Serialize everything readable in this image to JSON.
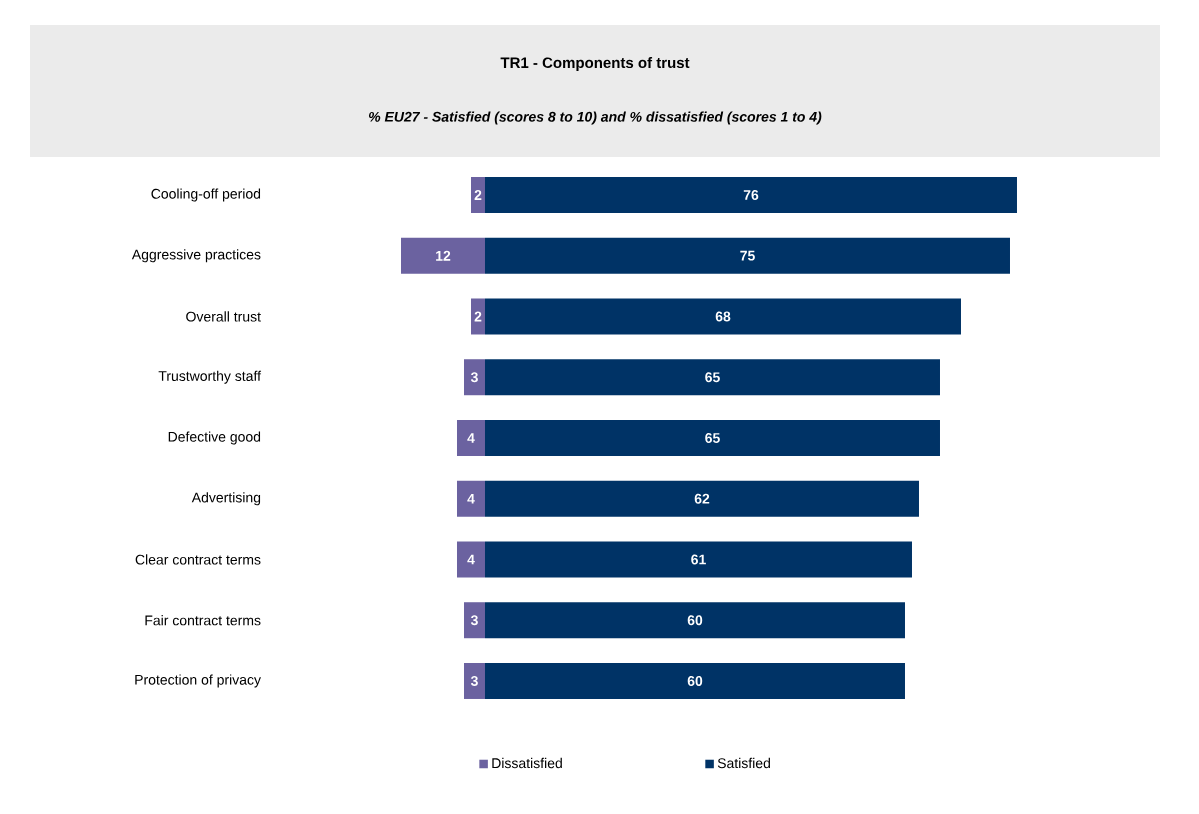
{
  "chart_data": [
    {
      "type": "bar",
      "orientation": "horizontal",
      "categories": [
        "Cooling-off period",
        "Aggressive practices",
        "Overall trust",
        "Trustworthy staff",
        "Defective good",
        "Advertising",
        "Clear contract terms",
        "Fair contract terms",
        "Protection of privacy"
      ],
      "series": [
        {
          "name": "Dissatisfied",
          "color": "#6b62a0",
          "values": [
            2,
            12,
            2,
            3,
            4,
            4,
            4,
            3,
            3
          ]
        }
      ],
      "xlim": [
        12,
        0
      ],
      "data_labels": true,
      "tick_labels": "y",
      "legend": "bottom"
    },
    {
      "type": "bar",
      "orientation": "horizontal",
      "title": "TR1 - Components of trust",
      "subtitle": "% EU27 - Satisfied (scores 8 to 10) and % dissatisfied (scores 1 to 4)",
      "categories": [
        null,
        null,
        null,
        null,
        null,
        null,
        null,
        null,
        null
      ],
      "series": [
        {
          "name": "Satisfied",
          "color": "#003366",
          "values": [
            76,
            75,
            68,
            65,
            65,
            62,
            61,
            60,
            60
          ]
        }
      ],
      "xlim": [
        0,
        76
      ],
      "data_labels": true,
      "tick_labels": "y",
      "legend": "bottom"
    }
  ]
}
